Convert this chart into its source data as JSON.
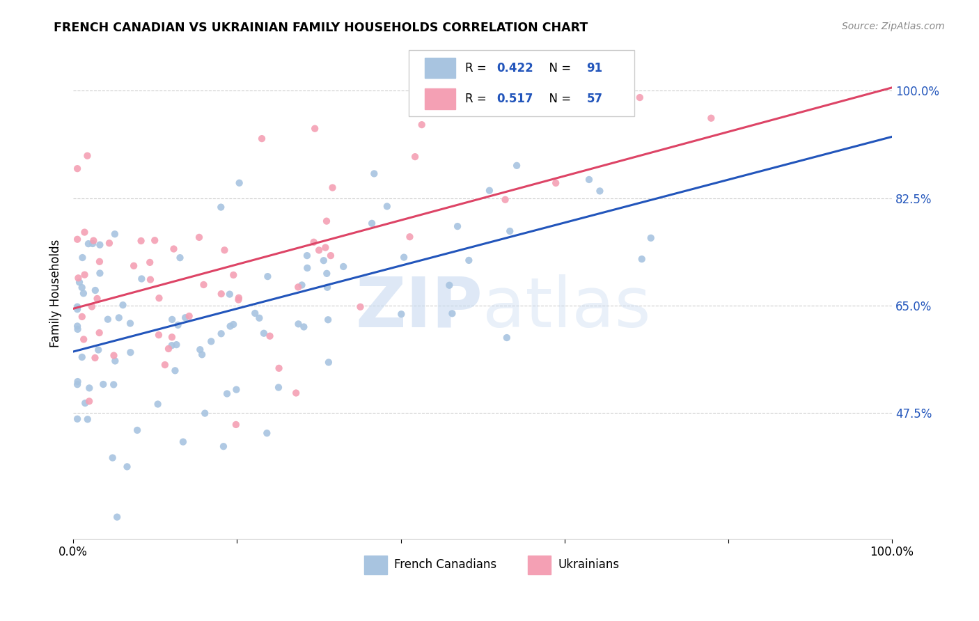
{
  "title": "FRENCH CANADIAN VS UKRAINIAN FAMILY HOUSEHOLDS CORRELATION CHART",
  "source": "Source: ZipAtlas.com",
  "ylabel": "Family Households",
  "ytick_labels": [
    "100.0%",
    "82.5%",
    "65.0%",
    "47.5%"
  ],
  "ytick_values": [
    1.0,
    0.825,
    0.65,
    0.475
  ],
  "xlim": [
    0.0,
    1.0
  ],
  "ylim": [
    0.27,
    1.07
  ],
  "r_blue": 0.422,
  "n_blue": 91,
  "r_pink": 0.517,
  "n_pink": 57,
  "blue_color": "#a8c4e0",
  "pink_color": "#f4a0b4",
  "blue_line_color": "#2255bb",
  "pink_line_color": "#dd4466",
  "blue_line_y0": 0.575,
  "blue_line_y1": 0.925,
  "pink_line_y0": 0.645,
  "pink_line_y1": 1.005,
  "scatter_marker_size": 55,
  "watermark_zip": "ZIP",
  "watermark_atlas": "atlas",
  "background_color": "#ffffff",
  "grid_color": "#cccccc"
}
